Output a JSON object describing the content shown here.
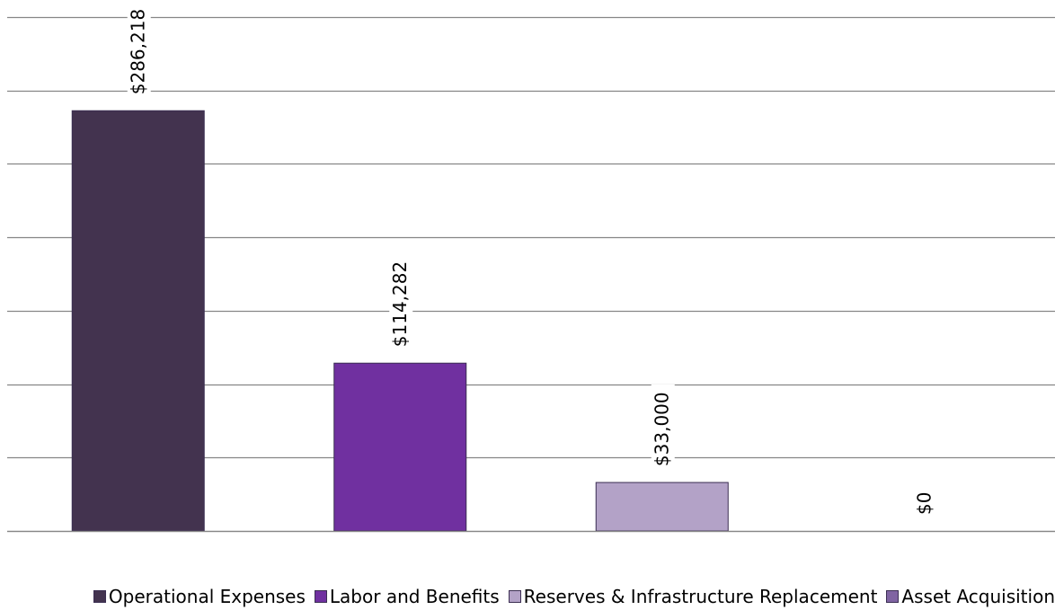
{
  "chart_data": {
    "type": "bar",
    "categories": [
      "Operational Expenses",
      "Labor and Benefits",
      "Reserves & Infrastructure Replacement",
      "Asset Acquisition"
    ],
    "values": [
      286218,
      114282,
      33000,
      0
    ],
    "data_labels": [
      "$286,218",
      "$114,282",
      "$33,000",
      "$0"
    ],
    "colors": [
      "#43334f",
      "#7030a0",
      "#b3a2c7",
      "#8064a2"
    ],
    "ylim": [
      0,
      350000
    ],
    "ytick_step": 50000,
    "grid": true,
    "legend_position": "bottom",
    "title": "",
    "xlabel": "",
    "ylabel": ""
  },
  "legend": [
    {
      "label": "Operational Expenses",
      "color": "#43334f"
    },
    {
      "label": "Labor and Benefits",
      "color": "#7030a0"
    },
    {
      "label": "Reserves & Infrastructure Replacement",
      "color": "#b3a2c7"
    },
    {
      "label": "Asset Acquisition",
      "color": "#8064a2"
    }
  ]
}
